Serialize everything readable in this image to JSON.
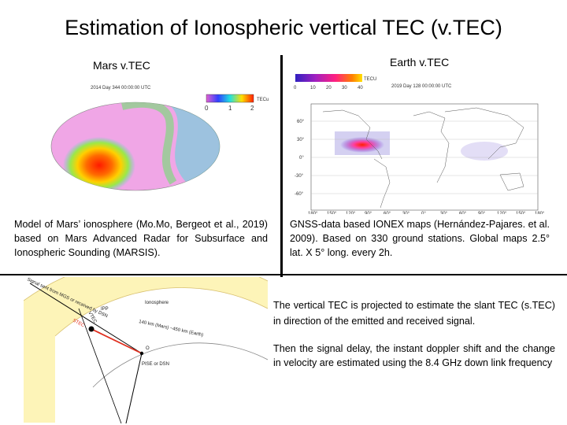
{
  "slide": {
    "title": "Estimation of Ionospheric vertical TEC (v.TEC)"
  },
  "mars": {
    "heading": "Mars v.TEC",
    "map_title": "2014 Day 344 00:00:00 UTC",
    "colorbar_unit": "TECu",
    "colorbar_ticks": [
      "0",
      "1",
      "2"
    ],
    "description": "Model of Mars’ ionosphere (Mo.Mo, Bergeot et al., 2019) based on Mars Advanced Radar for Subsurface and Ionospheric Sounding (MARSIS)."
  },
  "earth": {
    "heading": "Earth v.TEC",
    "map_title": "2019 Day 128 00:00:00 UTC",
    "colorbar_unit": "TECU",
    "colorbar_ticks": [
      "0",
      "10",
      "20",
      "30",
      "40"
    ],
    "lat_labels": [
      "60°",
      "30°",
      "0°",
      "-30°",
      "-60°"
    ],
    "lon_labels": [
      "180°",
      "150°",
      "120°",
      "90°",
      "60°",
      "30°",
      "0°",
      "30°",
      "60°",
      "90°",
      "120°",
      "150°",
      "180°"
    ],
    "description": "GNSS-data based IONEX maps (Hernández-Pajares. et al. 2009). Based on 330 ground stations. Global maps 2.5° lat. X 5° long. every 2h."
  },
  "diagram": {
    "signal_label": "Signal sent from MGS or received by DSN",
    "ionosphere_label": "Ionosphere",
    "ipp_label": "IPP",
    "vtec_label": "VTEC",
    "stec_label": "STEC",
    "height_label": "140 km (Mars) ~450 km (Earth)",
    "pise_label": "PISE or DSN",
    "center_label": "O"
  },
  "text": {
    "para1": "The vertical TEC is projected to estimate the slant TEC (s.TEC) in direction of the emitted and received signal.",
    "para2": "Then the signal delay, the instant doppler shift and the change in velocity are estimated using the 8.4 GHz down link frequency"
  },
  "colors": {
    "mars_low": "#e8a0e0",
    "mars_high": "#ff2200",
    "ionosphere_band": "#fdf4b8",
    "stec_line": "#e03020"
  }
}
